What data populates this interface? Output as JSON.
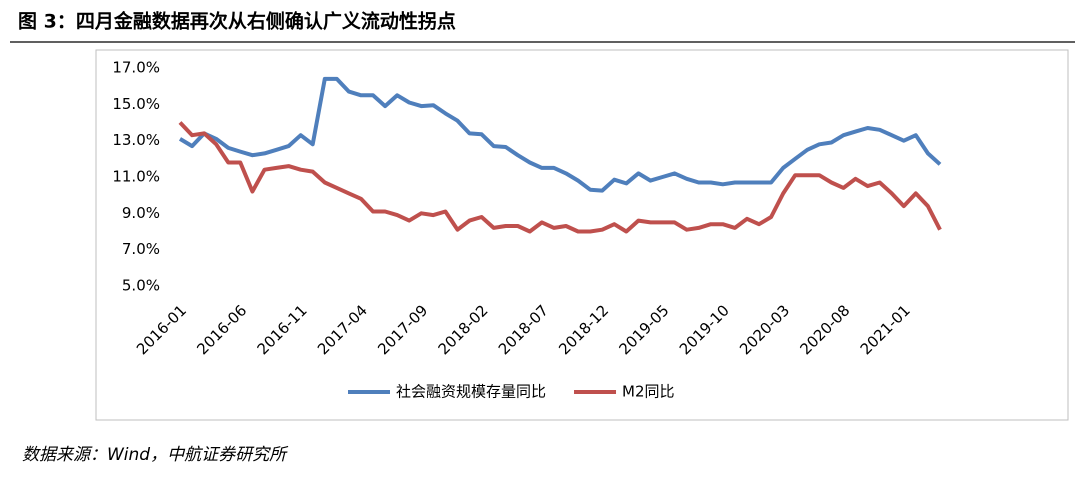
{
  "title": "图 3：四月金融数据再次从右侧确认广义流动性拐点",
  "source": "数据来源：Wind，中航证券研究所",
  "chart_data": {
    "type": "line",
    "categories": [
      "2016-01",
      null,
      null,
      null,
      null,
      "2016-06",
      null,
      null,
      null,
      null,
      "2016-11",
      null,
      null,
      null,
      null,
      "2017-04",
      null,
      null,
      null,
      null,
      "2017-09",
      null,
      null,
      null,
      null,
      "2018-02",
      null,
      null,
      null,
      null,
      "2018-07",
      null,
      null,
      null,
      null,
      "2018-12",
      null,
      null,
      null,
      null,
      "2019-05",
      null,
      null,
      null,
      null,
      "2019-10",
      null,
      null,
      null,
      null,
      "2020-03",
      null,
      null,
      null,
      null,
      "2020-08",
      null,
      null,
      null,
      null,
      "2021-01",
      null,
      null,
      null
    ],
    "series": [
      {
        "name": "社会融资规模存量同比",
        "color": "#4f7fbc",
        "values": [
          13.1,
          12.7,
          13.4,
          13.1,
          12.6,
          12.4,
          12.2,
          12.3,
          12.5,
          12.7,
          13.3,
          12.8,
          16.4,
          16.4,
          15.7,
          15.5,
          15.5,
          14.9,
          15.5,
          15.1,
          14.9,
          14.95,
          14.5,
          14.1,
          13.4,
          13.35,
          12.7,
          12.65,
          12.2,
          11.8,
          11.5,
          11.5,
          11.2,
          10.8,
          10.3,
          10.25,
          10.85,
          10.65,
          11.2,
          10.8,
          11.0,
          11.2,
          10.9,
          10.7,
          10.7,
          10.6,
          10.7,
          10.7,
          10.7,
          10.7,
          11.5,
          12.0,
          12.5,
          12.8,
          12.9,
          13.3,
          13.5,
          13.7,
          13.6,
          13.3,
          13.0,
          13.3,
          12.3,
          11.7
        ]
      },
      {
        "name": "M2同比",
        "color": "#bf504d",
        "values": [
          14.0,
          13.3,
          13.4,
          12.8,
          11.8,
          11.8,
          10.2,
          11.4,
          11.5,
          11.6,
          11.4,
          11.3,
          10.7,
          10.4,
          10.1,
          9.8,
          9.1,
          9.1,
          8.9,
          8.6,
          9.0,
          8.9,
          9.1,
          8.1,
          8.6,
          8.8,
          8.2,
          8.3,
          8.3,
          8.0,
          8.5,
          8.2,
          8.3,
          8.0,
          8.0,
          8.1,
          8.4,
          8.0,
          8.6,
          8.5,
          8.5,
          8.5,
          8.1,
          8.2,
          8.4,
          8.4,
          8.2,
          8.7,
          8.4,
          8.8,
          10.1,
          11.1,
          11.1,
          11.1,
          10.7,
          10.4,
          10.9,
          10.5,
          10.7,
          10.1,
          9.4,
          10.1,
          9.4,
          8.1
        ]
      }
    ],
    "ylim": [
      5,
      17
    ],
    "yticks": [
      {
        "value": 5,
        "label": "5.0%"
      },
      {
        "value": 7,
        "label": "7.0%"
      },
      {
        "value": 9,
        "label": "9.0%"
      },
      {
        "value": 11,
        "label": "11.0%"
      },
      {
        "value": 13,
        "label": "13.0%"
      },
      {
        "value": 15,
        "label": "15.0%"
      },
      {
        "value": 17,
        "label": "17.0%"
      }
    ],
    "grid": false
  }
}
